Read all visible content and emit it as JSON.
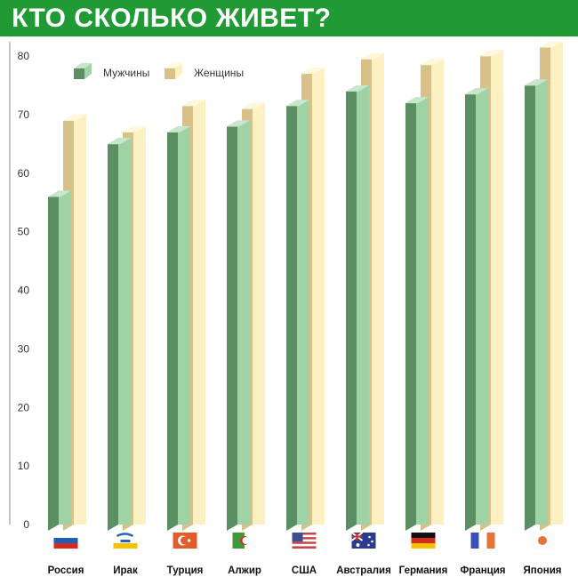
{
  "title": "КТО СКОЛЬКО ЖИВЕТ?",
  "colors": {
    "header": "#1f9a35",
    "men_front": "#9fd2a5",
    "men_side": "#5b8f63",
    "men_top": "#c7e6cb",
    "women_front": "#fdf0c2",
    "women_side": "#d7c188",
    "women_top": "#fff8dd"
  },
  "chart_data": {
    "type": "bar",
    "title": "КТО СКОЛЬКО ЖИВЕТ?",
    "categories": [
      "Россия",
      "Ирак",
      "Турция",
      "Алжир",
      "США",
      "Австралия",
      "Германия",
      "Франция",
      "Япония"
    ],
    "series": [
      {
        "name": "Мужчины",
        "values": [
          57,
          66,
          68,
          69,
          72.5,
          75,
          73,
          74.5,
          76
        ]
      },
      {
        "name": "Женщины",
        "values": [
          70,
          68,
          72.5,
          72,
          78,
          80.5,
          79.5,
          81,
          82.5
        ]
      }
    ],
    "ylim": [
      0,
      80
    ],
    "yticks": [
      0,
      10,
      20,
      30,
      40,
      50,
      60,
      70,
      80
    ],
    "xlabel": "",
    "ylabel": "",
    "grid": false,
    "legend_position": "top-left",
    "category_icons": [
      "flag-russia-icon",
      "flag-iraq-icon",
      "flag-turkey-icon",
      "flag-algeria-icon",
      "flag-usa-icon",
      "flag-australia-icon",
      "flag-germany-icon",
      "flag-france-icon",
      "flag-japan-icon"
    ]
  }
}
